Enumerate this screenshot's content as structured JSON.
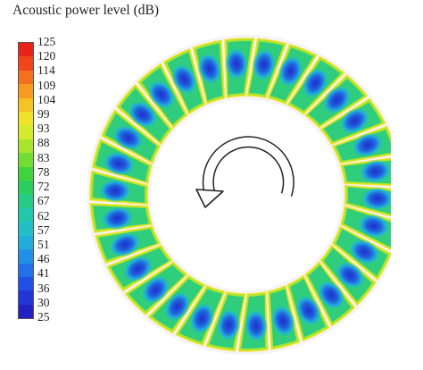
{
  "title": "Acoustic power level (dB)",
  "legend": {
    "labels": [
      "125",
      "120",
      "114",
      "109",
      "104",
      "99",
      "93",
      "88",
      "83",
      "78",
      "72",
      "67",
      "62",
      "57",
      "51",
      "46",
      "41",
      "36",
      "30",
      "25"
    ],
    "colors": [
      "#e8231c",
      "#f0461c",
      "#f4701e",
      "#f69a22",
      "#f6c224",
      "#f2e22a",
      "#d4ea2c",
      "#a8e62e",
      "#72dd32",
      "#3fd43c",
      "#2bcf5e",
      "#24cc86",
      "#22c8aa",
      "#22c0c6",
      "#22acdc",
      "#2290e6",
      "#2270ea",
      "#2250e4",
      "#2236d6",
      "#2222c4"
    ]
  },
  "diagram": {
    "blade_count": 30,
    "rotation_arrow": "counterclockwise-arrow",
    "colors": {
      "passage": "#2fcd7c",
      "passage_inner": "#27c4a8",
      "core": "#1f60dc",
      "core_center": "#1f2ecc",
      "edge_hot": "#f2e22a",
      "edge_warm": "#a8e62e",
      "blade": "#f4f4f4"
    }
  }
}
